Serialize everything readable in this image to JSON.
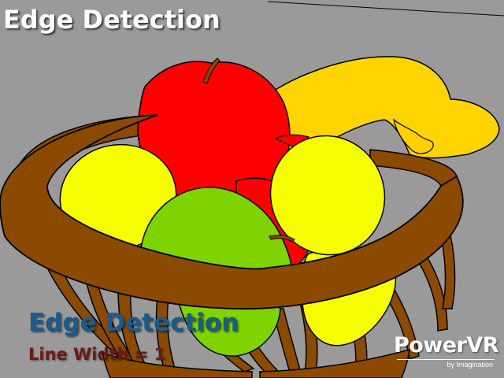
{
  "header": {
    "title": "Edge Detection"
  },
  "overlay": {
    "title": "Edge Detection",
    "line_width_label": "Line Width = 1"
  },
  "logo": {
    "brand": "PowerVR",
    "tagline": "by Imagination"
  },
  "colors": {
    "background": "#9a9a9a",
    "basket": "#8b4a00",
    "apple": "#ff0000",
    "lemon": "#f5ff00",
    "pear": "#7ed300",
    "banana": "#ffd400",
    "orange": "#ffb000",
    "outline": "#000000"
  }
}
